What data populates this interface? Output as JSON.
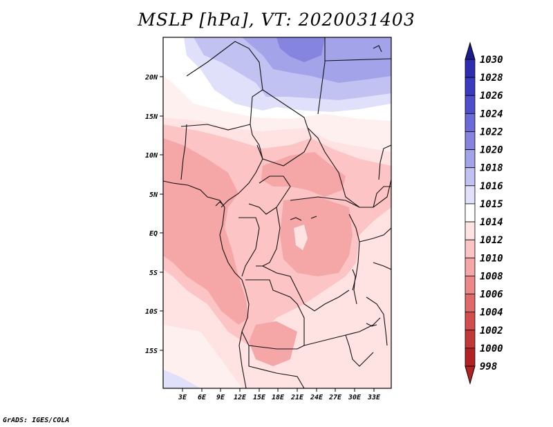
{
  "title": "MSLP [hPa], VT: 2020031403",
  "credit": "GrADS: IGES/COLA",
  "map": {
    "lon_range": [
      0,
      36
    ],
    "lat_range": [
      -20,
      25
    ],
    "lon_ticks": [
      "3E",
      "6E",
      "9E",
      "12E",
      "15E",
      "18E",
      "21E",
      "24E",
      "27E",
      "30E",
      "33E"
    ],
    "lat_ticks": [
      "20N",
      "15N",
      "10N",
      "5N",
      "EQ",
      "5S",
      "10S",
      "15S"
    ]
  },
  "colorbar": {
    "labels": [
      "1030",
      "1028",
      "1026",
      "1024",
      "1022",
      "1020",
      "1018",
      "1016",
      "1015",
      "1014",
      "1012",
      "1010",
      "1008",
      "1006",
      "1004",
      "1002",
      "1000",
      "998"
    ],
    "colors": {
      "top_cap": "#1c1c8c",
      "bottom_cap": "#b22222",
      "bins": [
        "#22229a",
        "#2d2db0",
        "#3b3bc0",
        "#4f4fcc",
        "#6a6ad8",
        "#8585e0",
        "#a3a3ea",
        "#c2c2f2",
        "#e0e0fa",
        "#ffffff",
        "#ffe2e2",
        "#fcc4c4",
        "#f5a6a6",
        "#ed8888",
        "#e06a6a",
        "#d24e4e",
        "#c23838",
        "#b22222"
      ]
    }
  },
  "chart_data": {
    "type": "heatmap",
    "title": "MSLP [hPa], VT: 2020031403",
    "variable": "MSLP",
    "units": "hPa",
    "valid_time": "2020031403",
    "x": [
      "3E",
      "6E",
      "9E",
      "12E",
      "15E",
      "18E",
      "21E",
      "24E",
      "27E",
      "30E",
      "33E"
    ],
    "y": [
      "20N",
      "15N",
      "10N",
      "5N",
      "EQ",
      "5S",
      "10S",
      "15S"
    ],
    "levels": [
      998,
      1000,
      1002,
      1004,
      1006,
      1008,
      1010,
      1012,
      1014,
      1015,
      1016,
      1018,
      1020,
      1022,
      1024,
      1026,
      1028,
      1030
    ]
  }
}
